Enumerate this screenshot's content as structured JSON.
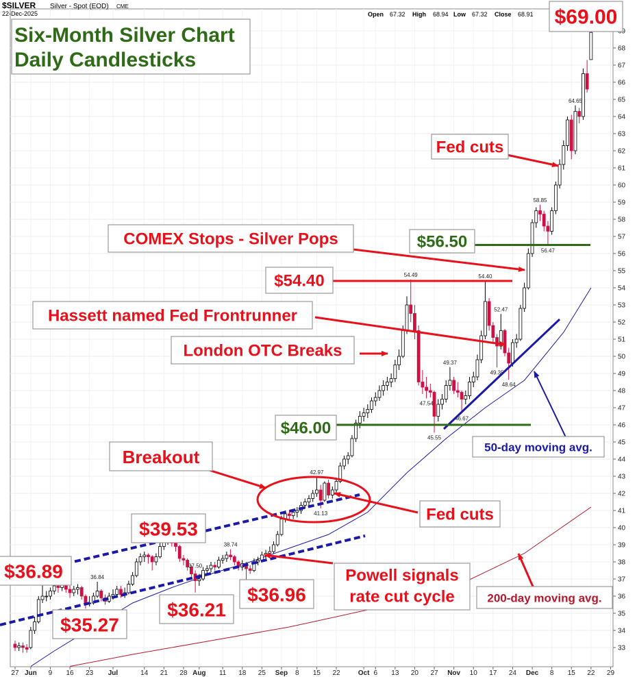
{
  "chart_data": {
    "type": "candlestick",
    "title": [
      "Six-Month Silver Chart",
      "Daily Candlesticks"
    ],
    "header": {
      "symbol": "$SILVER",
      "name": "Silver - Spot (EOD)",
      "exchange": "CME",
      "date": "22-Dec-2025",
      "quote": [
        {
          "label": "Open",
          "value": 67.32
        },
        {
          "label": "High",
          "value": 68.94
        },
        {
          "label": "Low",
          "value": 67.32
        },
        {
          "label": "Close",
          "value": 68.91
        }
      ]
    },
    "up_color": "#000000",
    "down_color": "#cc1144",
    "ohlc": [
      [
        33.2,
        33.4,
        32.8,
        33.0
      ],
      [
        33.0,
        33.3,
        32.8,
        33.1
      ],
      [
        33.1,
        33.3,
        32.7,
        33.0
      ],
      [
        33.0,
        33.2,
        32.7,
        32.9
      ],
      [
        33.0,
        34.2,
        32.9,
        34.0
      ],
      [
        34.0,
        34.8,
        33.8,
        34.5
      ],
      [
        34.5,
        36.0,
        34.4,
        35.8
      ],
      [
        35.8,
        36.89,
        35.6,
        36.0
      ],
      [
        36.0,
        36.3,
        35.7,
        36.0
      ],
      [
        36.0,
        36.5,
        35.8,
        36.3
      ],
      [
        36.3,
        36.8,
        36.1,
        36.6
      ],
      [
        36.6,
        36.8,
        36.2,
        36.5
      ],
      [
        36.5,
        37.0,
        36.3,
        36.8
      ],
      [
        36.8,
        36.9,
        36.2,
        36.4
      ],
      [
        36.4,
        36.6,
        35.9,
        36.2
      ],
      [
        36.2,
        36.6,
        36.0,
        36.4
      ],
      [
        36.4,
        36.7,
        36.1,
        36.5
      ],
      [
        36.5,
        36.6,
        35.8,
        36.0
      ],
      [
        36.0,
        36.1,
        35.27,
        35.6
      ],
      [
        35.6,
        36.0,
        35.4,
        35.6
      ],
      [
        35.6,
        36.2,
        35.5,
        36.0
      ],
      [
        36.0,
        36.84,
        35.9,
        36.3
      ],
      [
        36.3,
        36.4,
        35.7,
        35.9
      ],
      [
        35.9,
        36.1,
        35.5,
        35.7
      ],
      [
        35.7,
        36.2,
        35.6,
        36.0
      ],
      [
        36.0,
        36.4,
        35.8,
        36.1
      ],
      [
        36.1,
        36.6,
        35.9,
        36.4
      ],
      [
        36.4,
        36.6,
        35.9,
        36.1
      ],
      [
        36.1,
        36.5,
        35.9,
        36.2
      ],
      [
        36.2,
        36.9,
        36.1,
        36.7
      ],
      [
        36.7,
        37.4,
        36.6,
        37.2
      ],
      [
        37.2,
        38.2,
        37.1,
        38.0
      ],
      [
        38.0,
        38.5,
        37.8,
        38.3
      ],
      [
        38.3,
        38.6,
        38.0,
        38.4
      ],
      [
        38.4,
        38.5,
        37.9,
        38.3
      ],
      [
        38.3,
        38.4,
        37.5,
        38.0
      ],
      [
        38.0,
        38.5,
        37.8,
        38.3
      ],
      [
        38.3,
        39.1,
        38.2,
        38.9
      ],
      [
        38.9,
        39.3,
        38.7,
        39.2
      ],
      [
        39.2,
        39.53,
        39.0,
        39.4
      ],
      [
        39.4,
        39.5,
        38.9,
        39.1
      ],
      [
        39.1,
        39.2,
        38.6,
        38.9
      ],
      [
        38.9,
        39.0,
        38.0,
        38.2
      ],
      [
        38.2,
        38.4,
        37.8,
        38.1
      ],
      [
        38.1,
        38.2,
        37.5,
        37.7
      ],
      [
        37.7,
        37.8,
        37.0,
        37.3
      ],
      [
        37.3,
        37.5,
        36.21,
        36.9
      ],
      [
        36.9,
        37.3,
        36.6,
        37.0
      ],
      [
        37.0,
        37.7,
        36.9,
        37.5
      ],
      [
        37.5,
        37.8,
        37.3,
        37.6
      ],
      [
        37.6,
        38.0,
        37.4,
        37.8
      ],
      [
        37.8,
        38.0,
        37.5,
        37.7
      ],
      [
        37.7,
        38.3,
        37.6,
        38.1
      ],
      [
        38.1,
        38.4,
        37.9,
        38.2
      ],
      [
        38.2,
        38.6,
        38.0,
        38.4
      ],
      [
        38.4,
        38.74,
        38.1,
        38.3
      ],
      [
        38.3,
        38.4,
        37.8,
        38.0
      ],
      [
        38.0,
        38.1,
        37.5,
        37.7
      ],
      [
        37.7,
        38.1,
        37.5,
        37.9
      ],
      [
        37.9,
        38.0,
        36.96,
        37.6
      ],
      [
        37.6,
        37.8,
        37.3,
        37.5
      ],
      [
        37.5,
        38.2,
        37.4,
        38.0
      ],
      [
        38.0,
        38.3,
        37.8,
        38.1
      ],
      [
        38.1,
        38.6,
        38.0,
        38.4
      ],
      [
        38.4,
        38.7,
        38.2,
        38.5
      ],
      [
        38.5,
        38.9,
        38.3,
        38.6
      ],
      [
        38.6,
        39.2,
        38.5,
        39.0
      ],
      [
        39.0,
        39.8,
        38.9,
        39.6
      ],
      [
        39.6,
        40.7,
        39.5,
        40.5
      ],
      [
        40.5,
        41.0,
        40.3,
        40.8
      ],
      [
        40.8,
        41.0,
        40.4,
        40.7
      ],
      [
        40.7,
        41.1,
        40.5,
        40.9
      ],
      [
        40.9,
        41.2,
        40.6,
        41.0
      ],
      [
        41.0,
        41.5,
        40.8,
        41.3
      ],
      [
        41.3,
        41.7,
        41.1,
        41.5
      ],
      [
        41.5,
        41.9,
        41.3,
        41.7
      ],
      [
        41.7,
        42.2,
        41.5,
        42.0
      ],
      [
        42.0,
        42.97,
        41.8,
        42.2
      ],
      [
        42.2,
        42.5,
        41.13,
        41.6
      ],
      [
        41.6,
        42.7,
        41.5,
        42.6
      ],
      [
        42.6,
        42.8,
        41.7,
        41.9
      ],
      [
        41.9,
        42.4,
        41.7,
        42.2
      ],
      [
        42.2,
        42.9,
        42.0,
        42.7
      ],
      [
        42.7,
        43.8,
        42.6,
        43.6
      ],
      [
        43.6,
        44.2,
        43.4,
        44.0
      ],
      [
        44.0,
        44.4,
        43.7,
        44.2
      ],
      [
        44.2,
        45.4,
        44.1,
        45.2
      ],
      [
        45.2,
        46.3,
        45.0,
        46.1
      ],
      [
        46.1,
        46.8,
        45.8,
        46.5
      ],
      [
        46.5,
        47.0,
        46.2,
        46.7
      ],
      [
        46.7,
        47.2,
        46.4,
        46.9
      ],
      [
        46.9,
        47.6,
        46.7,
        47.4
      ],
      [
        47.4,
        47.9,
        47.1,
        47.6
      ],
      [
        47.6,
        48.3,
        47.4,
        48.0
      ],
      [
        48.0,
        48.6,
        47.7,
        48.3
      ],
      [
        48.3,
        48.8,
        48.0,
        48.5
      ],
      [
        48.5,
        49.0,
        48.2,
        48.7
      ],
      [
        48.7,
        49.8,
        48.5,
        49.5
      ],
      [
        49.5,
        50.4,
        49.2,
        50.0
      ],
      [
        50.0,
        51.8,
        49.9,
        51.5
      ],
      [
        51.5,
        53.5,
        51.3,
        53.0
      ],
      [
        53.0,
        54.49,
        52.0,
        52.5
      ],
      [
        52.5,
        53.0,
        51.0,
        51.5
      ],
      [
        51.5,
        51.8,
        48.3,
        48.5
      ],
      [
        48.5,
        49.2,
        47.8,
        48.2
      ],
      [
        48.2,
        48.8,
        47.54,
        48.0
      ],
      [
        48.0,
        48.4,
        47.6,
        47.9
      ],
      [
        47.9,
        48.0,
        45.55,
        46.5
      ],
      [
        46.5,
        47.5,
        46.2,
        47.2
      ],
      [
        47.2,
        47.8,
        46.9,
        47.5
      ],
      [
        47.5,
        48.6,
        47.3,
        48.3
      ],
      [
        48.3,
        49.37,
        48.0,
        48.6
      ],
      [
        48.6,
        48.8,
        47.8,
        48.0
      ],
      [
        48.0,
        48.5,
        47.6,
        47.9
      ],
      [
        47.9,
        48.0,
        46.67,
        47.5
      ],
      [
        47.5,
        48.0,
        47.2,
        47.7
      ],
      [
        47.7,
        48.8,
        47.5,
        48.5
      ],
      [
        48.5,
        49.1,
        48.2,
        48.8
      ],
      [
        48.8,
        50.1,
        48.6,
        49.8
      ],
      [
        49.8,
        51.5,
        49.6,
        51.2
      ],
      [
        51.2,
        54.4,
        51.0,
        53.2
      ],
      [
        53.2,
        53.4,
        51.5,
        51.8
      ],
      [
        51.8,
        52.0,
        50.8,
        51.1
      ],
      [
        51.1,
        51.3,
        49.35,
        50.6
      ],
      [
        50.6,
        52.47,
        50.4,
        51.5
      ],
      [
        51.5,
        51.6,
        50.0,
        50.2
      ],
      [
        50.2,
        50.5,
        48.64,
        49.6
      ],
      [
        49.6,
        51.0,
        49.4,
        50.8
      ],
      [
        50.8,
        51.3,
        50.5,
        51.0
      ],
      [
        51.0,
        53.0,
        50.9,
        52.8
      ],
      [
        52.8,
        54.3,
        52.6,
        54.0
      ],
      [
        54.0,
        56.3,
        53.9,
        56.0
      ],
      [
        56.0,
        58.0,
        55.8,
        57.8
      ],
      [
        57.8,
        58.7,
        57.5,
        58.5
      ],
      [
        58.5,
        58.85,
        57.9,
        58.3
      ],
      [
        58.3,
        58.5,
        57.3,
        57.6
      ],
      [
        57.6,
        57.9,
        56.47,
        57.3
      ],
      [
        57.3,
        58.7,
        57.1,
        58.5
      ],
      [
        58.5,
        60.2,
        58.3,
        60.0
      ],
      [
        60.0,
        61.5,
        59.8,
        61.2
      ],
      [
        61.2,
        62.6,
        60.9,
        62.3
      ],
      [
        62.3,
        64.0,
        62.0,
        63.8
      ],
      [
        63.8,
        64.1,
        61.5,
        62.0
      ],
      [
        62.0,
        64.65,
        61.8,
        64.3
      ],
      [
        64.3,
        64.5,
        63.6,
        64.0
      ],
      [
        64.0,
        66.8,
        63.8,
        66.5
      ],
      [
        66.5,
        67.3,
        65.4,
        65.6
      ],
      [
        67.32,
        68.94,
        67.32,
        68.91
      ]
    ],
    "series": [
      {
        "name": "50-day moving avg.",
        "color": "#1a1aa6",
        "x": [
          4,
          10,
          20,
          30,
          40,
          50,
          60,
          70,
          80,
          90,
          100,
          110,
          120,
          130,
          140,
          147
        ],
        "values": [
          31.9,
          32.8,
          34.2,
          35.6,
          36.5,
          37.3,
          38.0,
          38.8,
          39.6,
          40.9,
          43.2,
          45.2,
          47.0,
          48.6,
          51.4,
          54.0
        ]
      },
      {
        "name": "200-day moving avg.",
        "color": "#b3192b",
        "x": [
          14,
          30,
          50,
          70,
          90,
          110,
          130,
          147
        ],
        "values": [
          31.9,
          32.6,
          33.4,
          34.2,
          35.2,
          36.3,
          38.5,
          41.2
        ]
      }
    ],
    "marked_prices": [
      36.84,
      {
        "value": 37.5,
        "label": "37.50"
      },
      38.74,
      42.97,
      41.13,
      54.49,
      47.54,
      49.37,
      45.55,
      46.67,
      {
        "value": 54.4,
        "label": "54.40"
      },
      52.47,
      49.35,
      48.64,
      58.85,
      56.47,
      64.65
    ],
    "price_callouts": [
      {
        "value": 69,
        "label": "$69.00",
        "color": "#e8101a"
      },
      {
        "value": 56.5,
        "label": "$56.50",
        "color": "#2e6b16"
      },
      {
        "value": 54.4,
        "label": "$54.40",
        "color": "#e8101a"
      },
      {
        "value": 46,
        "label": "$46.00",
        "color": "#2e6b16"
      },
      {
        "value": 39.53,
        "label": "$39.53",
        "color": "#e8101a"
      },
      {
        "value": 36.89,
        "label": "$36.89",
        "color": "#e8101a"
      },
      {
        "value": 36.96,
        "label": "$36.96",
        "color": "#e8101a"
      },
      {
        "value": 36.21,
        "label": "$36.21",
        "color": "#e8101a"
      },
      {
        "value": 35.27,
        "label": "$35.27",
        "color": "#e8101a"
      }
    ],
    "annotations": [
      "Fed cuts",
      "COMEX Stops - Silver Pops",
      "Hassett named Fed Frontrunner",
      "London OTC Breaks",
      "Breakout",
      "Fed cuts",
      "Powell signals",
      "rate cut cycle"
    ],
    "annotation_color": "#e8101a",
    "title_color": "#2e6b16",
    "xlim": [
      -1.22,
      152.62
    ],
    "xticks": [
      {
        "value": 0,
        "label": "27"
      },
      {
        "value": 4,
        "label": "Jun"
      },
      {
        "value": 9,
        "label": "9"
      },
      {
        "value": 14,
        "label": "16"
      },
      {
        "value": 19,
        "label": "23"
      },
      {
        "value": 25,
        "label": "Jul"
      },
      {
        "value": 33,
        "label": "14"
      },
      {
        "value": 38,
        "label": "21"
      },
      {
        "value": 43,
        "label": "28"
      },
      {
        "value": 47,
        "label": "Aug"
      },
      {
        "value": 53,
        "label": "11"
      },
      {
        "value": 58,
        "label": "18"
      },
      {
        "value": 63,
        "label": "25"
      },
      {
        "value": 68,
        "label": "Sep"
      },
      {
        "value": 72,
        "label": "8"
      },
      {
        "value": 77,
        "label": "15"
      },
      {
        "value": 82,
        "label": "22"
      },
      {
        "value": 89,
        "label": "Oct"
      },
      {
        "value": 92,
        "label": "6"
      },
      {
        "value": 97,
        "label": "13"
      },
      {
        "value": 102,
        "label": "20"
      },
      {
        "value": 107,
        "label": "27"
      },
      {
        "value": 112,
        "label": "Nov"
      },
      {
        "value": 117,
        "label": "10"
      },
      {
        "value": 122,
        "label": "17"
      },
      {
        "value": 127,
        "label": "24"
      },
      {
        "value": 132,
        "label": "Dec"
      },
      {
        "value": 137,
        "label": "8"
      },
      {
        "value": 142,
        "label": "15"
      },
      {
        "value": 147,
        "label": "22"
      },
      {
        "value": 152,
        "label": "29"
      }
    ],
    "ylim": [
      31.88,
      70.28
    ],
    "yticks": [
      33,
      34,
      35,
      36,
      37,
      38,
      39,
      40,
      41,
      42,
      43,
      44,
      45,
      46,
      47,
      48,
      49,
      50,
      51,
      52,
      53,
      54,
      55,
      56,
      57,
      58,
      59,
      60,
      61,
      62,
      63,
      64,
      65,
      66,
      67,
      68,
      69
    ],
    "grid": true
  }
}
